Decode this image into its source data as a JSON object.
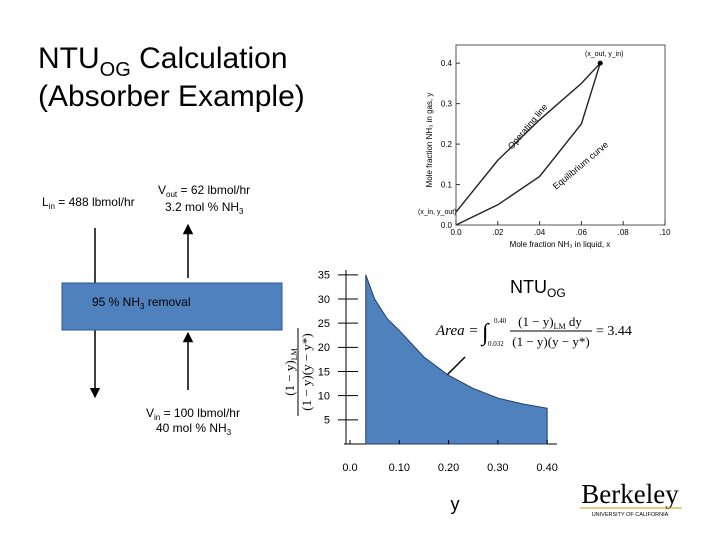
{
  "title": {
    "line1_main": "NTU",
    "line1_sub": "OG",
    "line1_rest": " Calculation",
    "line2": "(Absorber Example)"
  },
  "column": {
    "l_in": {
      "symbol": "L",
      "sub": "in",
      "text": " = 488 lbmol/hr"
    },
    "v_out": {
      "symbol": "V",
      "sub": "out",
      "text": " = 62 lbmol/hr",
      "line2": "3.2 mol % NH",
      "line2_sub": "3"
    },
    "removal": {
      "text": "95 % NH",
      "sub": "3",
      "rest": " removal"
    },
    "v_in": {
      "symbol": "V",
      "sub": "in",
      "text": " = 100 lbmol/hr",
      "line2": "40 mol % NH",
      "line2_sub": "3"
    }
  },
  "chart_data": [
    {
      "type": "line",
      "xlabel": "Mole fraction NH₃ in liquid, x",
      "ylabel": "Mole fraction NH₃ in gas, y",
      "annotations": [
        "(x_out, y_in)",
        "(x_in, y_out)"
      ],
      "x": [
        0,
        0.02,
        0.04,
        0.06,
        0.069
      ],
      "series": [
        {
          "name": "Operating line",
          "color": "#222222",
          "values": [
            0.032,
            0.16,
            0.26,
            0.35,
            0.4
          ]
        },
        {
          "name": "Equilibrium curve",
          "color": "#222222",
          "values": [
            0,
            0.05,
            0.12,
            0.25,
            0.4
          ]
        }
      ],
      "xlim": [
        0,
        0.1
      ],
      "ylim": [
        0,
        0.44
      ],
      "xticks": [
        {
          "value": 0,
          "label": "0.0"
        },
        {
          "value": 0.02,
          "label": ".02"
        },
        {
          "value": 0.04,
          "label": ".04"
        },
        {
          "value": 0.06,
          "label": ".06"
        },
        {
          "value": 0.08,
          "label": ".08"
        },
        {
          "value": 0.1,
          "label": ".10"
        }
      ],
      "yticks": [
        {
          "value": 0,
          "label": "0.0"
        },
        0.1,
        0.2,
        0.3,
        0.4
      ]
    },
    {
      "type": "area",
      "label": {
        "main": "NTU",
        "sub": "OG"
      },
      "xlabel": "y",
      "ylabel": {
        "numerator": "(1 − y)",
        "num_sub": "LM",
        "denominator": "(1 − y)(y − y*)"
      },
      "equation": {
        "lhs": "Area =",
        "upper": "0.40",
        "lower": "0.032",
        "numerator": "(1 − y)",
        "num_sub": "LM",
        "num_rest": " dy",
        "denominator": "(1 − y)(y − y*)",
        "result": "= 3.44"
      },
      "x": [
        0.032,
        0.05,
        0.075,
        0.1,
        0.15,
        0.2,
        0.25,
        0.3,
        0.35,
        0.4
      ],
      "values": [
        35,
        30,
        26,
        23.5,
        18,
        14.2,
        11.5,
        9.5,
        8.3,
        7.4
      ],
      "color": "#4f81bd",
      "xlim": [
        0,
        0.42
      ],
      "ylim": [
        0,
        36
      ],
      "xticks": [
        {
          "value": 0,
          "label": "0.0"
        },
        {
          "value": 0.1,
          "label": "0.10"
        },
        {
          "value": 0.2,
          "label": "0.20"
        },
        {
          "value": 0.3,
          "label": "0.30"
        },
        {
          "value": 0.4,
          "label": "0.40"
        }
      ],
      "yticks": [
        5,
        10,
        15,
        20,
        25,
        30,
        35
      ]
    }
  ],
  "logo": {
    "name": "Berkeley",
    "subtitle": "UNIVERSITY OF CALIFORNIA"
  }
}
